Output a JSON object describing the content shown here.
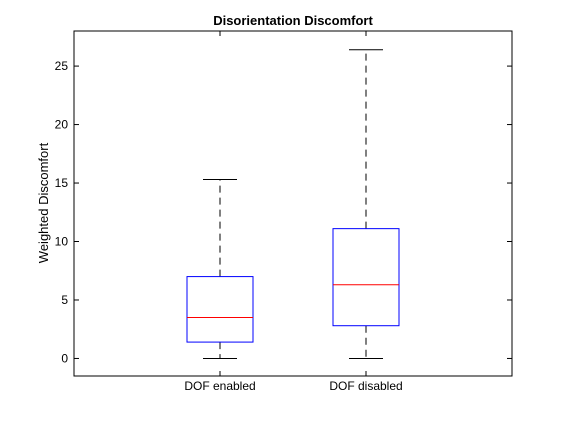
{
  "chart_data": {
    "type": "box",
    "title": "Disorientation Discomfort",
    "xlabel": "",
    "ylabel": "Weighted Discomfort",
    "ylim": [
      -1.5,
      28
    ],
    "yticks": [
      0,
      5,
      10,
      15,
      20,
      25
    ],
    "grid": false,
    "categories": [
      "DOF enabled",
      "DOF disabled"
    ],
    "boxes": [
      {
        "category": "DOF enabled",
        "whisker_low": 0,
        "q1": 1.4,
        "median": 3.5,
        "q3": 7.0,
        "whisker_high": 15.3
      },
      {
        "category": "DOF disabled",
        "whisker_low": 0,
        "q1": 2.8,
        "median": 6.3,
        "q3": 11.1,
        "whisker_high": 26.4
      }
    ],
    "colors": {
      "box": "#0000ff",
      "median": "#ff0000",
      "whisker": "#000000"
    }
  }
}
